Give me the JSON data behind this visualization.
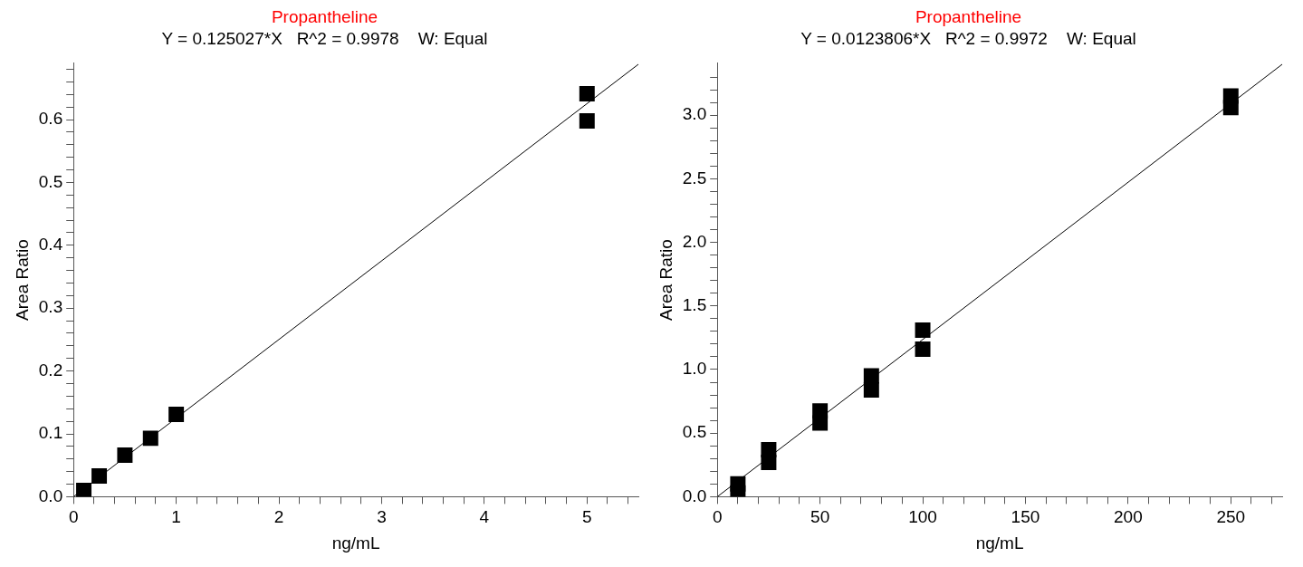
{
  "chart_data": [
    {
      "type": "scatter",
      "title": "Propantheline",
      "subtitle": "Y = 0.125027*X   R^2 = 0.9978    W: Equal",
      "xlabel": "ng/mL",
      "ylabel": "Area Ratio",
      "marker": "square",
      "grid": false,
      "legend": false,
      "xlim": [
        0,
        5.5
      ],
      "ylim": [
        0,
        0.69
      ],
      "xticks": [
        0,
        {
          "value": 0.2,
          "label": null
        },
        {
          "value": 0.4,
          "label": null
        },
        {
          "value": 0.6,
          "label": null
        },
        {
          "value": 0.8,
          "label": null
        },
        1,
        {
          "value": 1.2,
          "label": null
        },
        {
          "value": 1.4,
          "label": null
        },
        {
          "value": 1.6,
          "label": null
        },
        {
          "value": 1.8,
          "label": null
        },
        2,
        {
          "value": 2.2,
          "label": null
        },
        {
          "value": 2.4,
          "label": null
        },
        {
          "value": 2.6,
          "label": null
        },
        {
          "value": 2.8,
          "label": null
        },
        3,
        {
          "value": 3.2,
          "label": null
        },
        {
          "value": 3.4,
          "label": null
        },
        {
          "value": 3.6,
          "label": null
        },
        {
          "value": 3.8,
          "label": null
        },
        4,
        {
          "value": 4.2,
          "label": null
        },
        {
          "value": 4.4,
          "label": null
        },
        {
          "value": 4.6,
          "label": null
        },
        {
          "value": 4.8,
          "label": null
        },
        5,
        {
          "value": 5.2,
          "label": null
        },
        {
          "value": 5.4,
          "label": null
        }
      ],
      "yticks": [
        {
          "value": 0,
          "label": "0.0"
        },
        {
          "value": 0.02,
          "label": null
        },
        {
          "value": 0.04,
          "label": null
        },
        {
          "value": 0.06,
          "label": null
        },
        {
          "value": 0.08,
          "label": null
        },
        0.1,
        {
          "value": 0.12,
          "label": null
        },
        {
          "value": 0.14,
          "label": null
        },
        {
          "value": 0.16,
          "label": null
        },
        {
          "value": 0.18,
          "label": null
        },
        0.2,
        {
          "value": 0.22,
          "label": null
        },
        {
          "value": 0.24,
          "label": null
        },
        {
          "value": 0.26,
          "label": null
        },
        {
          "value": 0.28,
          "label": null
        },
        0.3,
        {
          "value": 0.32,
          "label": null
        },
        {
          "value": 0.34,
          "label": null
        },
        {
          "value": 0.36,
          "label": null
        },
        {
          "value": 0.38,
          "label": null
        },
        0.4,
        {
          "value": 0.42,
          "label": null
        },
        {
          "value": 0.44,
          "label": null
        },
        {
          "value": 0.46,
          "label": null
        },
        {
          "value": 0.48,
          "label": null
        },
        0.5,
        {
          "value": 0.52,
          "label": null
        },
        {
          "value": 0.54,
          "label": null
        },
        {
          "value": 0.56,
          "label": null
        },
        {
          "value": 0.58,
          "label": null
        },
        0.6,
        {
          "value": 0.62,
          "label": null
        },
        {
          "value": 0.64,
          "label": null
        },
        {
          "value": 0.66,
          "label": null
        },
        {
          "value": 0.68,
          "label": null
        }
      ],
      "series": [
        {
          "type": "scatter",
          "color": "#000000",
          "x": [
            0.1,
            0.25,
            0.5,
            0.75,
            1,
            5,
            5
          ],
          "values": [
            0.01,
            0.033,
            0.066,
            0.093,
            0.131,
            0.641,
            0.598
          ]
        },
        {
          "type": "line",
          "color": "#000000",
          "marker": "none",
          "x": [
            0,
            5.5
          ],
          "values": [
            0,
            0.688
          ]
        }
      ]
    },
    {
      "type": "scatter",
      "title": "Propantheline",
      "subtitle": "Y = 0.0123806*X   R^2 = 0.9972    W: Equal",
      "xlabel": "ng/mL",
      "ylabel": "Area Ratio",
      "marker": "square",
      "grid": false,
      "legend": false,
      "xlim": [
        0,
        275
      ],
      "ylim": [
        0,
        3.41
      ],
      "xticks": [
        0,
        {
          "value": 10,
          "label": null
        },
        {
          "value": 20,
          "label": null
        },
        {
          "value": 30,
          "label": null
        },
        {
          "value": 40,
          "label": null
        },
        50,
        {
          "value": 60,
          "label": null
        },
        {
          "value": 70,
          "label": null
        },
        {
          "value": 80,
          "label": null
        },
        {
          "value": 90,
          "label": null
        },
        100,
        {
          "value": 110,
          "label": null
        },
        {
          "value": 120,
          "label": null
        },
        {
          "value": 130,
          "label": null
        },
        {
          "value": 140,
          "label": null
        },
        150,
        {
          "value": 160,
          "label": null
        },
        {
          "value": 170,
          "label": null
        },
        {
          "value": 180,
          "label": null
        },
        {
          "value": 190,
          "label": null
        },
        200,
        {
          "value": 210,
          "label": null
        },
        {
          "value": 220,
          "label": null
        },
        {
          "value": 230,
          "label": null
        },
        {
          "value": 240,
          "label": null
        },
        250,
        {
          "value": 260,
          "label": null
        },
        {
          "value": 270,
          "label": null
        }
      ],
      "yticks": [
        {
          "value": 0,
          "label": "0.0"
        },
        {
          "value": 0.1,
          "label": null
        },
        {
          "value": 0.2,
          "label": null
        },
        {
          "value": 0.3,
          "label": null
        },
        {
          "value": 0.4,
          "label": null
        },
        0.5,
        {
          "value": 0.6,
          "label": null
        },
        {
          "value": 0.7,
          "label": null
        },
        {
          "value": 0.8,
          "label": null
        },
        {
          "value": 0.9,
          "label": null
        },
        {
          "value": 1,
          "label": "1.0"
        },
        {
          "value": 1.1,
          "label": null
        },
        {
          "value": 1.2,
          "label": null
        },
        {
          "value": 1.3,
          "label": null
        },
        {
          "value": 1.4,
          "label": null
        },
        1.5,
        {
          "value": 1.6,
          "label": null
        },
        {
          "value": 1.7,
          "label": null
        },
        {
          "value": 1.8,
          "label": null
        },
        {
          "value": 1.9,
          "label": null
        },
        {
          "value": 2,
          "label": "2.0"
        },
        {
          "value": 2.1,
          "label": null
        },
        {
          "value": 2.2,
          "label": null
        },
        {
          "value": 2.3,
          "label": null
        },
        {
          "value": 2.4,
          "label": null
        },
        2.5,
        {
          "value": 2.6,
          "label": null
        },
        {
          "value": 2.7,
          "label": null
        },
        {
          "value": 2.8,
          "label": null
        },
        {
          "value": 2.9,
          "label": null
        },
        {
          "value": 3,
          "label": "3.0"
        },
        {
          "value": 3.1,
          "label": null
        },
        {
          "value": 3.2,
          "label": null
        },
        {
          "value": 3.3,
          "label": null
        }
      ],
      "series": [
        {
          "type": "scatter",
          "color": "#000000",
          "x": [
            10,
            10,
            25,
            25,
            50,
            50,
            75,
            75,
            100,
            100,
            250,
            250
          ],
          "values": [
            0.1,
            0.03,
            0.37,
            0.27,
            0.675,
            0.58,
            0.95,
            0.84,
            1.31,
            1.16,
            3.15,
            3.06
          ]
        },
        {
          "type": "line",
          "color": "#000000",
          "marker": "none",
          "x": [
            0,
            275
          ],
          "values": [
            0,
            3.4
          ]
        }
      ]
    }
  ]
}
